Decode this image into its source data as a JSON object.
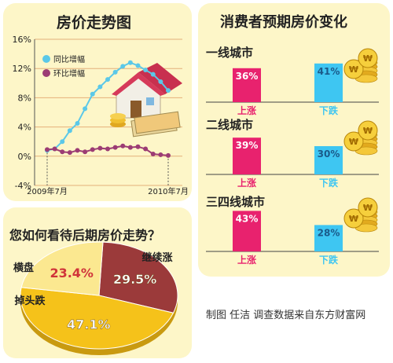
{
  "trend": {
    "title": "房价走势图",
    "yticks": [
      "16%",
      "12%",
      "8%",
      "4%",
      "0%",
      "-4%"
    ],
    "xticks": [
      "2009年7月",
      "2010年7月"
    ]
  },
  "expectation": {
    "title": "消费者预期房价变化",
    "up_label": "上涨",
    "down_label": "下跌",
    "tiers": [
      {
        "name": "一线城市",
        "up": "36%",
        "down": "41%"
      },
      {
        "name": "二线城市",
        "up": "39%",
        "down": "30%"
      },
      {
        "name": "三四线城市",
        "up": "43%",
        "down": "28%"
      }
    ]
  },
  "view": {
    "title": "您如何看待后期房价走势？"
  },
  "credit": "制图 任洁 调查数据来自东方财富网",
  "coin_symbol": "₩",
  "colors": {
    "panel": "#fdf6c8",
    "up": "#e8226e",
    "down": "#3ec6f2",
    "yoy": "#5bc8e8",
    "mom": "#9c3c74",
    "pie_continue": "#9b3a3a",
    "pie_flat": "#fbe890",
    "pie_drop": "#f5c21a"
  },
  "chart_data": [
    {
      "type": "line",
      "title": "房价走势图",
      "ylim": [
        -4,
        16
      ],
      "ytick_values": [
        16,
        12,
        8,
        4,
        0,
        -4
      ],
      "xtick_labels": [
        "2009年7月",
        "2010年7月"
      ],
      "legend_position": "top-left",
      "grid": true,
      "series": [
        {
          "name": "同比增幅",
          "color": "#5bc8e8",
          "values": [
            0.8,
            1.0,
            2.0,
            3.5,
            4.5,
            6.5,
            8.5,
            9.5,
            10.5,
            11.5,
            12.3,
            12.8,
            12.4,
            11.8,
            11.2,
            10.2,
            9.0
          ]
        },
        {
          "name": "环比增幅",
          "color": "#9c3c74",
          "values": [
            0.9,
            1.0,
            0.6,
            0.5,
            0.8,
            0.6,
            0.9,
            1.1,
            1.0,
            1.2,
            1.4,
            1.2,
            1.3,
            1.0,
            0.3,
            0.2,
            0.1
          ]
        }
      ]
    },
    {
      "type": "bar",
      "title": "消费者预期房价变化",
      "categories": [
        "上涨",
        "下跌"
      ],
      "ylim": [
        0,
        50
      ],
      "groups": [
        {
          "name": "一线城市",
          "values": [
            36,
            41
          ]
        },
        {
          "name": "二线城市",
          "values": [
            39,
            30
          ]
        },
        {
          "name": "三四线城市",
          "values": [
            43,
            28
          ]
        }
      ]
    },
    {
      "type": "pie",
      "title": "您如何看待后期房价走势？",
      "slices": [
        {
          "label": "继续涨",
          "value": 29.5,
          "display": "29.5%",
          "color": "#9b3a3a"
        },
        {
          "label": "掉头跌",
          "value": 47.1,
          "display": "47.1%",
          "color": "#f5c21a"
        },
        {
          "label": "横盘",
          "value": 23.4,
          "display": "23.4%",
          "color": "#fbe890"
        }
      ]
    }
  ]
}
